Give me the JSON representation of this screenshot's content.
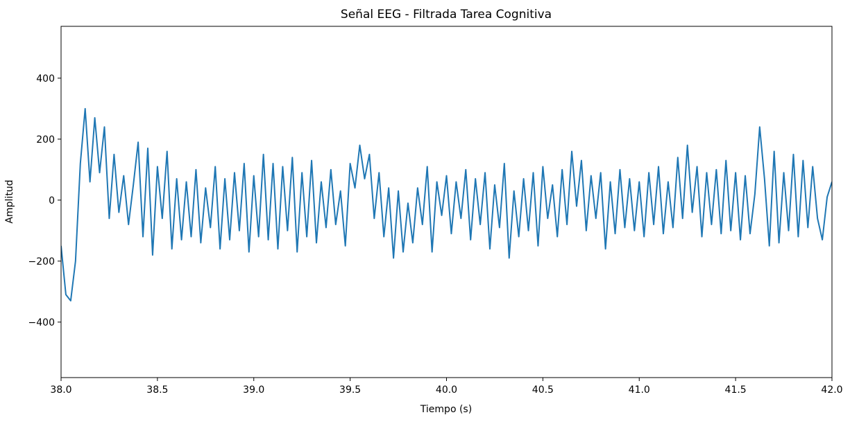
{
  "chart_data": {
    "type": "line",
    "title": "Señal EEG - Filtrada Tarea Cognitiva",
    "x_label": "Tiempo (s)",
    "y_label": "Amplitud",
    "xlim": [
      38.0,
      42.0
    ],
    "ylim": [
      -582,
      570
    ],
    "xticks": [
      {
        "value": 38,
        "label": "38.0"
      },
      {
        "value": 38.5,
        "label": "38.5"
      },
      {
        "value": 39,
        "label": "39.0"
      },
      {
        "value": 39.5,
        "label": "39.5"
      },
      {
        "value": 40,
        "label": "40.0"
      },
      {
        "value": 40.5,
        "label": "40.5"
      },
      {
        "value": 41,
        "label": "41.0"
      },
      {
        "value": 41.5,
        "label": "41.5"
      },
      {
        "value": 42,
        "label": "42.0"
      }
    ],
    "yticks": [
      {
        "value": -400,
        "label": "−400"
      },
      {
        "value": -200,
        "label": "−200"
      },
      0,
      200,
      400
    ],
    "grid": false,
    "series": [
      {
        "color": "#1f77b4",
        "x": [
          38,
          38.025,
          38.05,
          38.075,
          38.1,
          38.125,
          38.15,
          38.175,
          38.2,
          38.225,
          38.25,
          38.275,
          38.3,
          38.325,
          38.35,
          38.375,
          38.4,
          38.425,
          38.45,
          38.475,
          38.5,
          38.525,
          38.55,
          38.575,
          38.6,
          38.625,
          38.65,
          38.675,
          38.7,
          38.725,
          38.75,
          38.775,
          38.8,
          38.825,
          38.85,
          38.875,
          38.9,
          38.925,
          38.95,
          38.975,
          39,
          39.025,
          39.05,
          39.075,
          39.1,
          39.125,
          39.15,
          39.175,
          39.2,
          39.225,
          39.25,
          39.275,
          39.3,
          39.325,
          39.35,
          39.375,
          39.4,
          39.425,
          39.45,
          39.475,
          39.5,
          39.525,
          39.55,
          39.575,
          39.6,
          39.625,
          39.65,
          39.675,
          39.7,
          39.725,
          39.75,
          39.775,
          39.8,
          39.825,
          39.85,
          39.875,
          39.9,
          39.925,
          39.95,
          39.975,
          40,
          40.025,
          40.05,
          40.075,
          40.1,
          40.125,
          40.15,
          40.175,
          40.2,
          40.225,
          40.25,
          40.275,
          40.3,
          40.325,
          40.35,
          40.375,
          40.4,
          40.425,
          40.45,
          40.475,
          40.5,
          40.525,
          40.55,
          40.575,
          40.6,
          40.625,
          40.65,
          40.675,
          40.7,
          40.725,
          40.75,
          40.775,
          40.8,
          40.825,
          40.85,
          40.875,
          40.9,
          40.925,
          40.95,
          40.975,
          41,
          41.025,
          41.05,
          41.075,
          41.1,
          41.125,
          41.15,
          41.175,
          41.2,
          41.225,
          41.25,
          41.275,
          41.3,
          41.325,
          41.35,
          41.375,
          41.4,
          41.425,
          41.45,
          41.475,
          41.5,
          41.525,
          41.55,
          41.575,
          41.6,
          41.625,
          41.65,
          41.675,
          41.7,
          41.725,
          41.75,
          41.775,
          41.8,
          41.825,
          41.85,
          41.875,
          41.9,
          41.925,
          41.95,
          41.975,
          42
        ],
        "values": [
          -150,
          -310,
          -330,
          -200,
          120,
          300,
          60,
          270,
          90,
          240,
          -60,
          150,
          -40,
          80,
          -80,
          50,
          190,
          -120,
          170,
          -180,
          110,
          -60,
          160,
          -160,
          70,
          -130,
          60,
          -120,
          100,
          -140,
          40,
          -90,
          110,
          -160,
          70,
          -130,
          90,
          -100,
          120,
          -170,
          80,
          -120,
          150,
          -130,
          120,
          -160,
          110,
          -100,
          140,
          -170,
          90,
          -120,
          130,
          -140,
          60,
          -90,
          100,
          -80,
          30,
          -150,
          120,
          40,
          180,
          70,
          150,
          -60,
          90,
          -120,
          40,
          -190,
          30,
          -170,
          -10,
          -140,
          40,
          -80,
          110,
          -170,
          60,
          -50,
          80,
          -110,
          60,
          -60,
          100,
          -130,
          70,
          -80,
          90,
          -160,
          50,
          -90,
          120,
          -190,
          30,
          -120,
          70,
          -100,
          90,
          -150,
          110,
          -60,
          50,
          -120,
          100,
          -80,
          160,
          -20,
          130,
          -100,
          80,
          -60,
          90,
          -160,
          60,
          -110,
          100,
          -90,
          70,
          -100,
          60,
          -120,
          90,
          -80,
          110,
          -110,
          60,
          -90,
          140,
          -60,
          180,
          -40,
          110,
          -120,
          90,
          -80,
          100,
          -110,
          130,
          -100,
          90,
          -130,
          80,
          -110,
          20,
          240,
          70,
          -150,
          160,
          -140,
          90,
          -100,
          150,
          -120,
          130,
          -90,
          110,
          -60,
          -130,
          10,
          60
        ]
      }
    ]
  }
}
